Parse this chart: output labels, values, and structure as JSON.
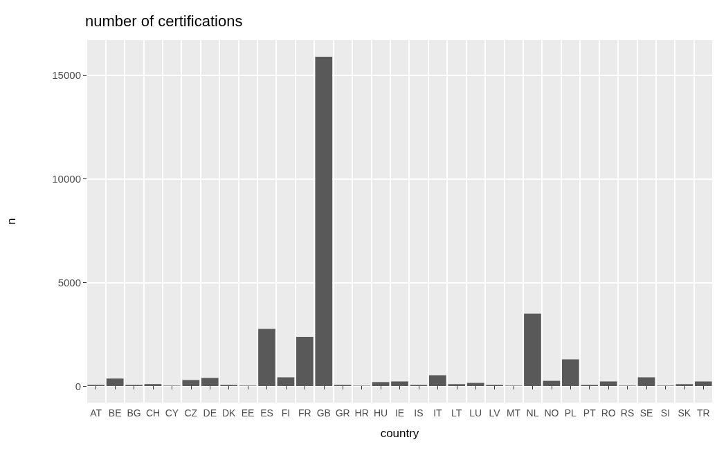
{
  "chart_data": {
    "type": "bar",
    "title": "number of certifications",
    "xlabel": "country",
    "ylabel": "n",
    "categories": [
      "AT",
      "BE",
      "BG",
      "CH",
      "CY",
      "CZ",
      "DE",
      "DK",
      "EE",
      "ES",
      "FI",
      "FR",
      "GB",
      "GR",
      "HR",
      "HU",
      "IE",
      "IS",
      "IT",
      "LT",
      "LU",
      "LV",
      "MT",
      "NL",
      "NO",
      "PL",
      "PT",
      "RO",
      "RS",
      "SE",
      "SI",
      "SK",
      "TR"
    ],
    "values": [
      50,
      360,
      50,
      90,
      20,
      290,
      390,
      50,
      20,
      2760,
      420,
      2370,
      15900,
      50,
      20,
      190,
      220,
      50,
      520,
      90,
      150,
      50,
      20,
      3490,
      250,
      1290,
      50,
      220,
      20,
      420,
      20,
      90,
      220
    ],
    "color": "#595959",
    "ylim": [
      -800,
      16700
    ],
    "yticks": [
      0,
      5000,
      10000,
      15000
    ],
    "grid": true
  }
}
